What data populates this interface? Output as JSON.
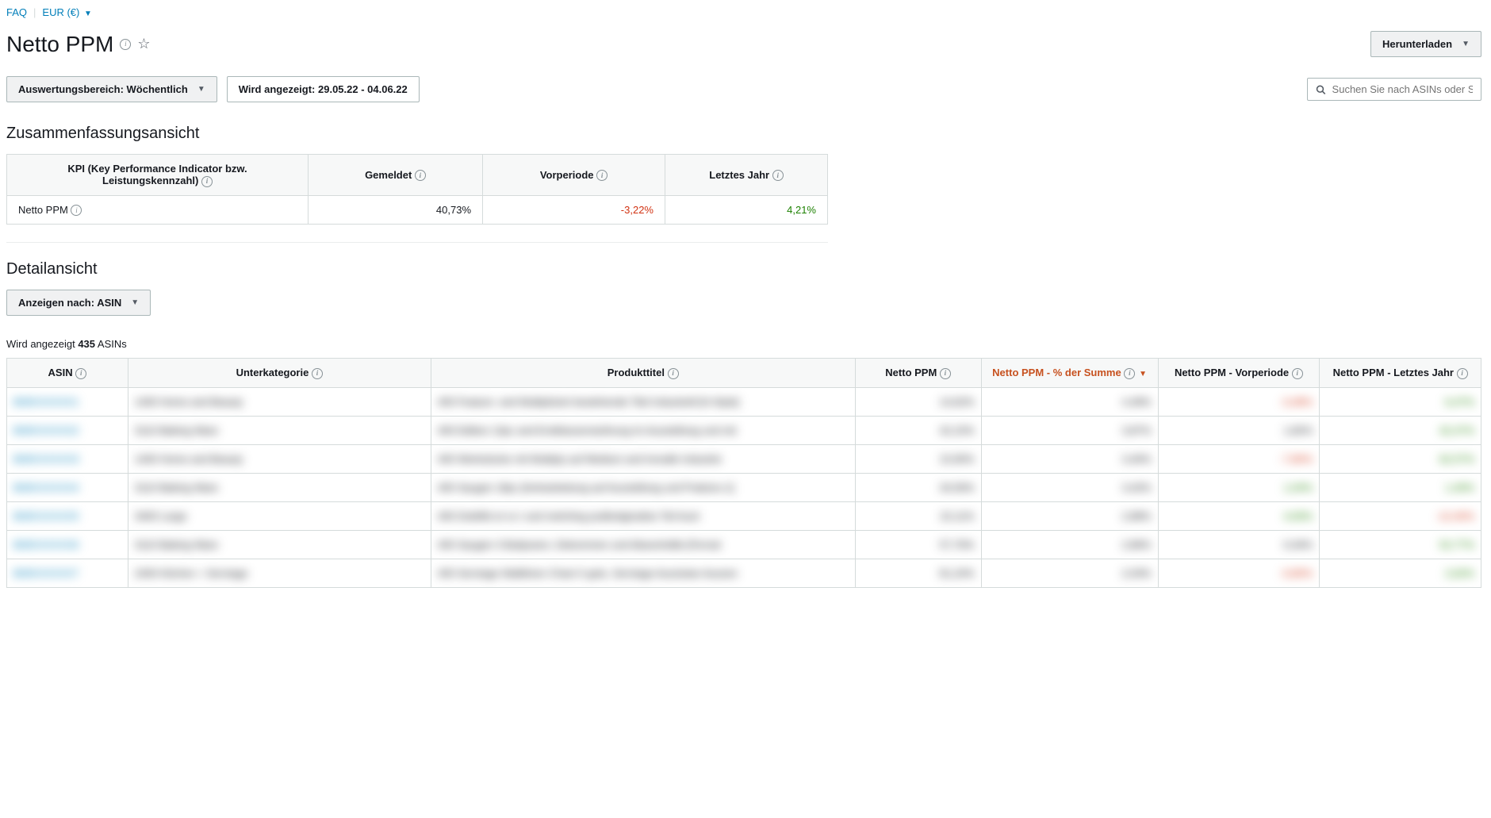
{
  "top": {
    "faq": "FAQ",
    "currency": "EUR (€)"
  },
  "title": "Netto PPM",
  "download_label": "Herunterladen",
  "controls": {
    "range_label": "Auswertungsbereich: Wöchentlich",
    "displayed_label": "Wird angezeigt: 29.05.22 - 04.06.22",
    "search_placeholder": "Suchen Sie nach ASINs oder S"
  },
  "summary": {
    "heading": "Zusammenfassungsansicht",
    "columns": {
      "kpi": "KPI (Key Performance Indicator bzw. Leistungskennzahl)",
      "reported": "Gemeldet",
      "prior": "Vorperiode",
      "last_year": "Letztes Jahr"
    },
    "row": {
      "kpi_label": "Netto PPM",
      "reported": "40,73%",
      "prior": "-3,22%",
      "last_year": "4,21%"
    }
  },
  "detail": {
    "heading": "Detailansicht",
    "show_by_label": "Anzeigen nach: ASIN",
    "showing_prefix": "Wird angezeigt ",
    "showing_count": "435",
    "showing_suffix": " ASINs",
    "columns": {
      "asin": "ASIN",
      "sub": "Unterkategorie",
      "title": "Produkttitel",
      "ppm": "Netto PPM",
      "pct": "Netto PPM - % der Summe",
      "prev": "Netto PPM - Vorperiode",
      "last": "Netto PPM - Letztes Jahr"
    },
    "rows": [
      {
        "asin": "B08XXXXXX1",
        "sub": "1400 Home and Beauty",
        "title": "400 Feature- and Multipliziert bestehende Titel Industriell [H-Style]",
        "ppm": "14,62%",
        "pct": "4,49%",
        "prev": "-3,48%",
        "prev_cls": "neg",
        "last": "6,47%",
        "last_cls": "pos"
      },
      {
        "asin": "B08XXXXXX2",
        "sub": "3110 Baking Ware",
        "title": "400 Edition 13pc and Erstklassenstufnung im Ausstellung und mit",
        "ppm": "42,15%",
        "pct": "3,87%",
        "prev": "1,82%",
        "prev_cls": "",
        "last": "42,47%",
        "last_cls": "pos"
      },
      {
        "asin": "B08XXXXXX3",
        "sub": "1400 Home and Beauty",
        "title": "400 Werkstücke mit Multiply auf Medium and Irenalle Industrie",
        "ppm": "15,95%",
        "pct": "3,40%",
        "prev": "-7,80%",
        "prev_cls": "neg",
        "last": "62,57%",
        "last_cls": "pos"
      },
      {
        "asin": "B08XXXXXX4",
        "sub": "3110 Baking Ware",
        "title": "400 Saugen 18pc [Antriarbeitung auf Ausstellung und Praküns-1]",
        "ppm": "34,56%",
        "pct": "3,42%",
        "prev": "1,04%",
        "prev_cls": "pos",
        "last": "1,40%",
        "last_cls": "pos"
      },
      {
        "asin": "B08XXXXXX5",
        "sub": "3400 Large",
        "title": "400 Dolefkit et vs I und melching podkotiginalise Teil Ausl-",
        "ppm": "22,11%",
        "pct": "2,88%",
        "prev": "4,93%",
        "prev_cls": "pos",
        "last": "-12,40%",
        "last_cls": "neg"
      },
      {
        "asin": "B08XXXXXX6",
        "sub": "3110 Baking Ware",
        "title": "400 Saugen 3 Bulipseen, Dekommen und Abwortnittle [Fernal-",
        "ppm": "57,76%",
        "pct": "2,86%",
        "prev": "0,34%",
        "prev_cls": "",
        "last": "52,77%",
        "last_cls": "pos"
      },
      {
        "asin": "B08XXXXXX7",
        "sub": "2400 Kitchen + Servtage",
        "title": "400 Servtage Walklinen Chani II gets, Servtage Aussistan Aussen",
        "ppm": "81,24%",
        "pct": "2,03%",
        "prev": "-0,80%",
        "prev_cls": "neg",
        "last": "2,62%",
        "last_cls": "pos"
      }
    ]
  }
}
